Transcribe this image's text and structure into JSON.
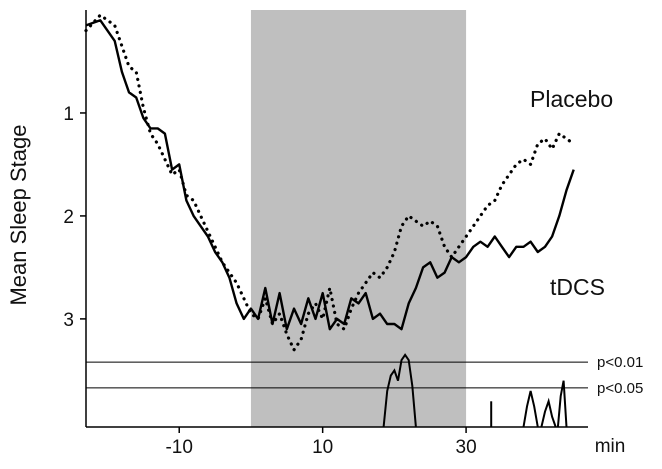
{
  "chart_data": {
    "type": "line",
    "ylabel": "Mean Sleep Stage",
    "xunit": "min",
    "xlim": [
      -23,
      47
    ],
    "ylim": [
      0,
      4.05
    ],
    "y_inverted": true,
    "x_ticks": [
      -10,
      10,
      30
    ],
    "y_ticks": [
      1,
      2,
      3
    ],
    "shaded_region": {
      "x_start": 0,
      "x_end": 30,
      "color": "#bfbfbf"
    },
    "thresholds": [
      {
        "label": "p<0.01",
        "y": 3.42
      },
      {
        "label": "p<0.05",
        "y": 3.67
      }
    ],
    "series": [
      {
        "name": "Placebo",
        "style": "dotted",
        "x": [
          -23,
          -21,
          -19,
          -18,
          -17,
          -16,
          -15,
          -14,
          -13,
          -12,
          -11,
          -10,
          -9,
          -8,
          -7,
          -6,
          -5,
          -4,
          -3,
          -2,
          -1,
          0,
          1,
          2,
          3,
          4,
          5,
          6,
          7,
          8,
          9,
          10,
          11,
          12,
          13,
          14,
          15,
          16,
          17,
          18,
          19,
          20,
          21,
          22,
          23,
          24,
          25,
          26,
          27,
          28,
          29,
          30,
          31,
          32,
          33,
          34,
          35,
          36,
          37,
          38,
          39,
          40,
          41,
          42,
          43,
          44,
          45
        ],
        "values": [
          0.2,
          0.05,
          0.15,
          0.35,
          0.55,
          0.6,
          0.95,
          1.2,
          1.3,
          1.45,
          1.6,
          1.55,
          1.8,
          1.85,
          2.0,
          2.15,
          2.3,
          2.45,
          2.55,
          2.65,
          2.8,
          2.95,
          3.0,
          2.8,
          3.05,
          2.95,
          3.15,
          3.3,
          3.2,
          2.95,
          2.85,
          3.0,
          2.7,
          3.05,
          3.1,
          2.9,
          2.75,
          2.65,
          2.55,
          2.6,
          2.5,
          2.35,
          2.1,
          2.0,
          2.05,
          2.1,
          2.05,
          2.1,
          2.3,
          2.4,
          2.3,
          2.2,
          2.1,
          2.0,
          1.9,
          1.85,
          1.7,
          1.6,
          1.5,
          1.45,
          1.5,
          1.3,
          1.25,
          1.35,
          1.2,
          1.25,
          1.3
        ]
      },
      {
        "name": "tDCS",
        "style": "solid",
        "x": [
          -23,
          -21,
          -19,
          -18,
          -17,
          -16,
          -15,
          -14,
          -13,
          -12,
          -11,
          -10,
          -9,
          -8,
          -7,
          -6,
          -5,
          -4,
          -3,
          -2,
          -1,
          0,
          1,
          2,
          3,
          4,
          5,
          6,
          7,
          8,
          9,
          10,
          11,
          12,
          13,
          14,
          15,
          16,
          17,
          18,
          19,
          20,
          21,
          22,
          23,
          24,
          25,
          26,
          27,
          28,
          29,
          30,
          31,
          32,
          33,
          34,
          35,
          36,
          37,
          38,
          39,
          40,
          41,
          42,
          43,
          44,
          45
        ],
        "values": [
          0.15,
          0.1,
          0.3,
          0.6,
          0.8,
          0.85,
          1.05,
          1.15,
          1.15,
          1.2,
          1.55,
          1.5,
          1.85,
          2.0,
          2.1,
          2.2,
          2.35,
          2.45,
          2.6,
          2.85,
          3.0,
          2.9,
          3.0,
          2.7,
          3.05,
          2.75,
          3.1,
          2.9,
          3.05,
          2.8,
          3.0,
          2.75,
          3.1,
          3.0,
          3.05,
          2.8,
          2.85,
          2.75,
          3.0,
          2.95,
          3.05,
          3.05,
          3.1,
          2.85,
          2.7,
          2.5,
          2.45,
          2.6,
          2.55,
          2.4,
          2.45,
          2.4,
          2.3,
          2.25,
          2.3,
          2.2,
          2.3,
          2.4,
          2.3,
          2.3,
          2.25,
          2.35,
          2.3,
          2.2,
          2.0,
          1.75,
          1.55
        ]
      }
    ],
    "significance_trace": {
      "x": [
        18.5,
        19,
        19.5,
        20,
        20.5,
        21,
        21.5,
        22,
        22.5,
        23
      ],
      "values": [
        4.05,
        3.7,
        3.55,
        3.5,
        3.6,
        3.4,
        3.35,
        3.4,
        3.65,
        4.05
      ]
    },
    "significance_marks": [
      {
        "x": [
          33.5,
          33.5
        ],
        "values": [
          4.05,
          3.8
        ]
      },
      {
        "x": [
          38,
          38.5,
          39,
          39.5,
          40
        ],
        "values": [
          4.05,
          3.85,
          3.7,
          3.85,
          4.05
        ]
      },
      {
        "x": [
          40.5,
          41,
          41.5,
          42,
          42.5
        ],
        "values": [
          4.05,
          3.9,
          3.8,
          3.95,
          4.05
        ]
      },
      {
        "x": [
          42.8,
          43.2,
          43.6,
          44
        ],
        "values": [
          4.05,
          3.75,
          3.6,
          4.05
        ]
      }
    ]
  }
}
